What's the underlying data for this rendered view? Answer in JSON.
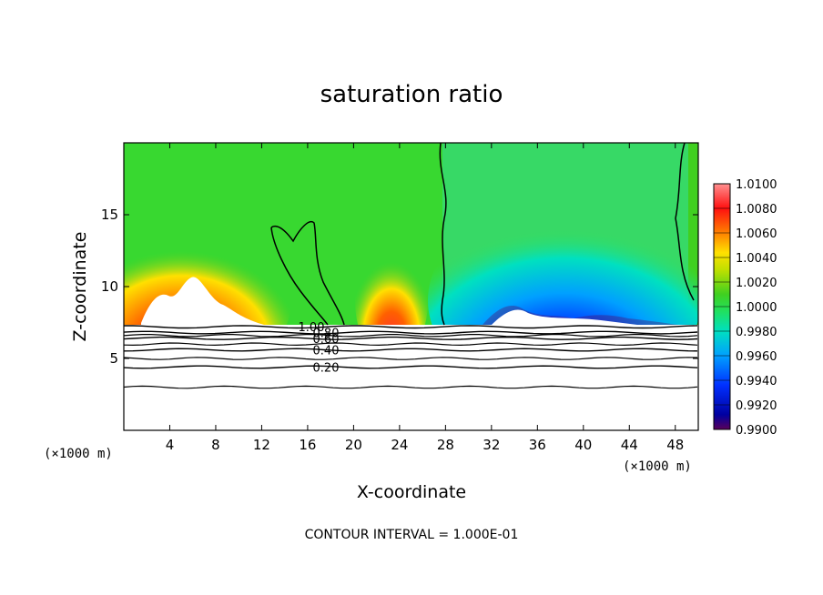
{
  "chart_data": {
    "type": "contour",
    "title": "saturation ratio",
    "xlabel": "X-coordinate",
    "ylabel": "Z-coordinate",
    "x_unit": "(×1000 m)",
    "y_unit": "(×1000 m)",
    "xlim": [
      0,
      50
    ],
    "ylim": [
      0,
      20
    ],
    "x_ticks": [
      4,
      8,
      12,
      16,
      20,
      24,
      28,
      32,
      36,
      40,
      44,
      48
    ],
    "y_ticks": [
      5,
      10,
      15
    ],
    "colorbar": {
      "min": 0.99,
      "max": 1.01,
      "labels": [
        "1.0100",
        "1.0080",
        "1.0060",
        "1.0040",
        "1.0020",
        "1.0000",
        "0.9980",
        "0.9960",
        "0.9940",
        "0.9920",
        "0.9900"
      ]
    },
    "contour_lines": [
      {
        "value": 0.2,
        "label": "0.20",
        "z": 4.4
      },
      {
        "value": 0.4,
        "label": "0.40",
        "z": 5.6
      },
      {
        "value": 0.6,
        "label": "0.60",
        "z": 6.4
      },
      {
        "value": 0.8,
        "label": "0.80",
        "z": 6.8
      },
      {
        "value": 1.0,
        "label": "1.00",
        "z": 7.2
      }
    ],
    "contour_interval_text": "CONTOUR INTERVAL = 1.000E-01"
  }
}
